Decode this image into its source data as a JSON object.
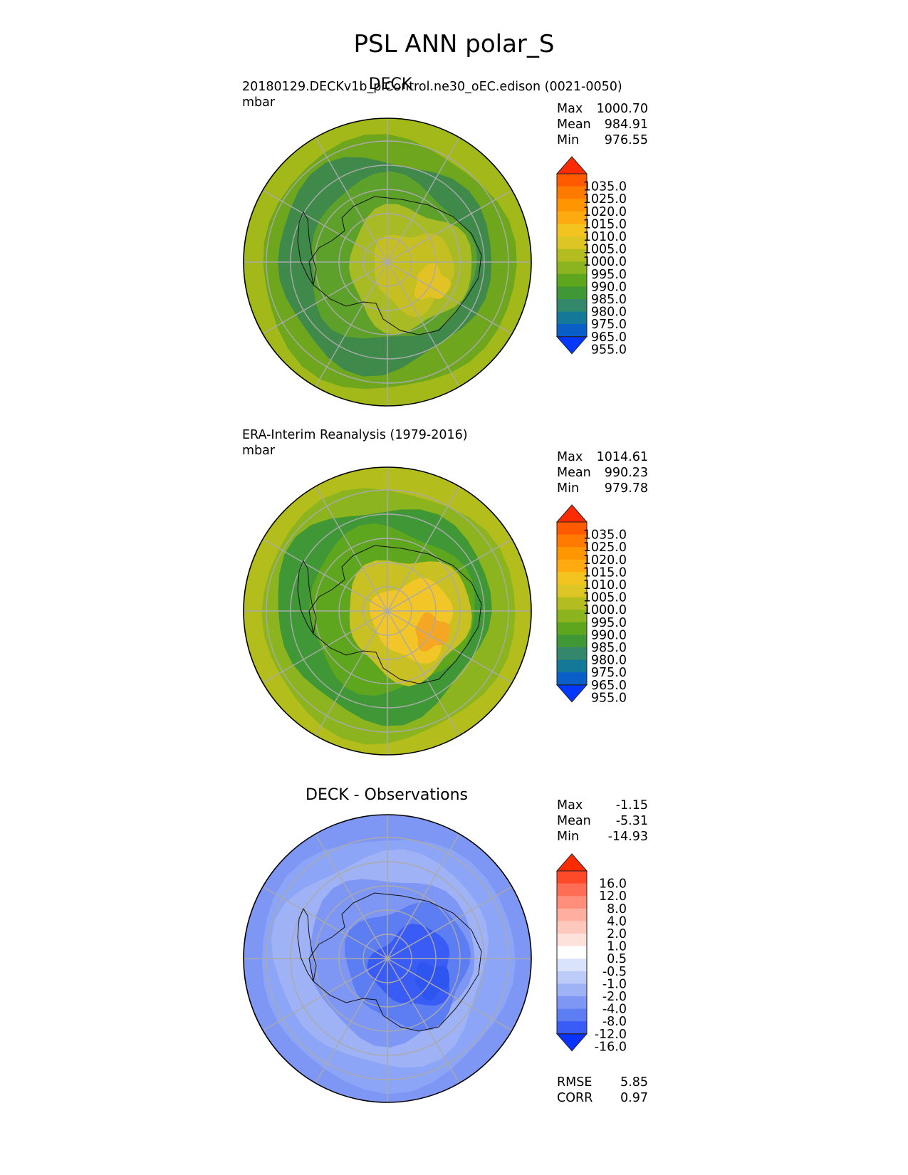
{
  "page_title": "PSL ANN polar_S",
  "chart_data": [
    {
      "type": "heatmap",
      "title": "DECK",
      "subtitle": "20180129.DECKv1b_piControl.ne30_oEC.edison (0021-0050)",
      "units": "mbar",
      "stats": [
        {
          "label": "Max",
          "value": "1000.70"
        },
        {
          "label": "Mean",
          "value": "984.91"
        },
        {
          "label": "Min",
          "value": "976.55"
        }
      ],
      "colorbar": {
        "labels": [
          "1035.0",
          "1025.0",
          "1020.0",
          "1015.0",
          "1010.0",
          "1005.0",
          "1000.0",
          "995.0",
          "990.0",
          "985.0",
          "980.0",
          "975.0",
          "965.0",
          "955.0"
        ],
        "colors": [
          "#ff2b00",
          "#ff5a00",
          "#ff7a00",
          "#ff9500",
          "#ffaa10",
          "#f3c31f",
          "#dcc524",
          "#b3bd20",
          "#8cb41e",
          "#5fa61f",
          "#3f9835",
          "#33876a",
          "#147899",
          "#0a5ec8",
          "#0038ff"
        ]
      },
      "map_colors": {
        "ring_outer": "#a3b919",
        "ring_mid": "#6ea61e",
        "storm": "#3f8a4a",
        "coast_band": "#5da12a",
        "interior_low": "#a8bb24",
        "interior_high": "#c6bf22",
        "peak": "#e2c224"
      }
    },
    {
      "type": "heatmap",
      "title": "",
      "subtitle": "ERA-Interim Reanalysis (1979-2016)",
      "units": "mbar",
      "stats": [
        {
          "label": "Max",
          "value": "1014.61"
        },
        {
          "label": "Mean",
          "value": "990.23"
        },
        {
          "label": "Min",
          "value": "979.78"
        }
      ],
      "colorbar": {
        "labels": [
          "1035.0",
          "1025.0",
          "1020.0",
          "1015.0",
          "1010.0",
          "1005.0",
          "1000.0",
          "995.0",
          "990.0",
          "985.0",
          "980.0",
          "975.0",
          "965.0",
          "955.0"
        ],
        "colors": [
          "#ff2b00",
          "#ff5a00",
          "#ff7a00",
          "#ff9500",
          "#ffaa10",
          "#f3c31f",
          "#dcc524",
          "#b3bd20",
          "#8cb41e",
          "#5fa61f",
          "#3f9835",
          "#33876a",
          "#147899",
          "#0a5ec8",
          "#0038ff"
        ]
      },
      "map_colors": {
        "ring_outer": "#b3bd1c",
        "ring_mid": "#8cb41e",
        "storm": "#3f9835",
        "coast_band": "#5fa61f",
        "interior_low": "#c9c124",
        "interior_high": "#f2c628",
        "peak": "#f5a623"
      }
    },
    {
      "type": "heatmap",
      "title": "DECK - Observations",
      "subtitle": "",
      "units": "",
      "stats": [
        {
          "label": "Max",
          "value": "-1.15"
        },
        {
          "label": "Mean",
          "value": "-5.31"
        },
        {
          "label": "Min",
          "value": "-14.93"
        }
      ],
      "colorbar": {
        "labels": [
          "16.0",
          "12.0",
          "8.0",
          "4.0",
          "2.0",
          "1.0",
          "0.5",
          "-0.5",
          "-1.0",
          "-2.0",
          "-4.0",
          "-8.0",
          "-12.0",
          "-16.0"
        ],
        "colors": [
          "#ff2b00",
          "#ff4a2a",
          "#ff6d55",
          "#ff8e7a",
          "#ffaea0",
          "#ffc8bd",
          "#fde1db",
          "#ffffff",
          "#dbe3fb",
          "#bccbf7",
          "#9eb2f5",
          "#7f97f4",
          "#5d7df3",
          "#3a5cf6",
          "#0a33ff"
        ]
      },
      "map_colors": {
        "ring_outer": "#7f97f4",
        "ring_mid": "#8da5f6",
        "storm": "#9eb2f5",
        "coast_band": "#7f97f4",
        "interior_low": "#5d7df3",
        "interior_high": "#3a5cf6",
        "peak": "#2f55f0"
      },
      "metrics": [
        {
          "label": "RMSE",
          "value": "5.85"
        },
        {
          "label": "CORR",
          "value": "0.97"
        }
      ]
    }
  ]
}
